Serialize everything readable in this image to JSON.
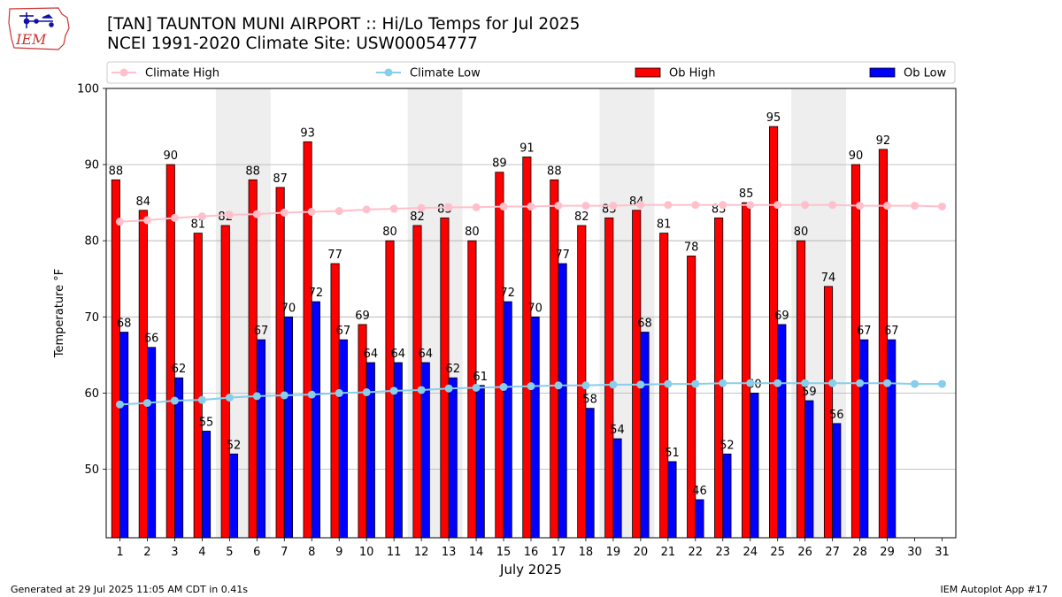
{
  "title_line1": "[TAN] TAUNTON MUNI AIRPORT :: Hi/Lo Temps for Jul 2025",
  "title_line2": "NCEI 1991-2020 Climate Site: USW00054777",
  "logo_text": "IEM",
  "footer_left": "Generated at 29 Jul 2025 11:05 AM CDT in 0.41s",
  "footer_right": "IEM Autoplot App #17",
  "colors": {
    "ob_high": "#ff0000",
    "ob_low": "#0000ff",
    "climate_high": "#ffc0cb",
    "climate_low": "#87ceeb",
    "weekend_shade": "#eeeeee",
    "grid": "#b0b0b0"
  },
  "chart_data": {
    "type": "bar",
    "xlabel": "July 2025",
    "ylabel": "Temperature °F",
    "ylim": [
      41,
      100
    ],
    "yticks": [
      50,
      60,
      70,
      80,
      90,
      100
    ],
    "x": [
      1,
      2,
      3,
      4,
      5,
      6,
      7,
      8,
      9,
      10,
      11,
      12,
      13,
      14,
      15,
      16,
      17,
      18,
      19,
      20,
      21,
      22,
      23,
      24,
      25,
      26,
      27,
      28,
      29,
      30,
      31
    ],
    "grid": "horizontal",
    "legend_position": "top",
    "weekend_shaded_days": [
      [
        5,
        6
      ],
      [
        12,
        13
      ],
      [
        19,
        20
      ],
      [
        26,
        27
      ]
    ],
    "series": [
      {
        "name": "Climate High",
        "kind": "line",
        "values": [
          82.5,
          82.7,
          83.0,
          83.2,
          83.4,
          83.5,
          83.7,
          83.8,
          83.9,
          84.1,
          84.2,
          84.3,
          84.4,
          84.4,
          84.5,
          84.5,
          84.6,
          84.6,
          84.6,
          84.7,
          84.7,
          84.7,
          84.7,
          84.7,
          84.7,
          84.7,
          84.7,
          84.6,
          84.6,
          84.6,
          84.5
        ]
      },
      {
        "name": "Climate Low",
        "kind": "line",
        "values": [
          58.5,
          58.7,
          59.0,
          59.1,
          59.4,
          59.6,
          59.7,
          59.8,
          60.0,
          60.1,
          60.3,
          60.4,
          60.6,
          60.7,
          60.8,
          60.9,
          61.0,
          61.0,
          61.1,
          61.1,
          61.2,
          61.2,
          61.3,
          61.3,
          61.3,
          61.3,
          61.3,
          61.3,
          61.3,
          61.2,
          61.2
        ]
      },
      {
        "name": "Ob High",
        "kind": "bar",
        "values": [
          88,
          84,
          90,
          81,
          82,
          88,
          87,
          93,
          77,
          69,
          80,
          82,
          83,
          80,
          89,
          91,
          88,
          82,
          83,
          84,
          81,
          78,
          83,
          85,
          95,
          80,
          74,
          90,
          92,
          null,
          null
        ]
      },
      {
        "name": "Ob Low",
        "kind": "bar",
        "values": [
          68,
          66,
          62,
          55,
          52,
          67,
          70,
          72,
          67,
          64,
          64,
          64,
          62,
          61,
          72,
          70,
          77,
          58,
          54,
          68,
          51,
          46,
          52,
          60,
          69,
          59,
          56,
          67,
          67,
          null,
          null
        ]
      }
    ]
  }
}
